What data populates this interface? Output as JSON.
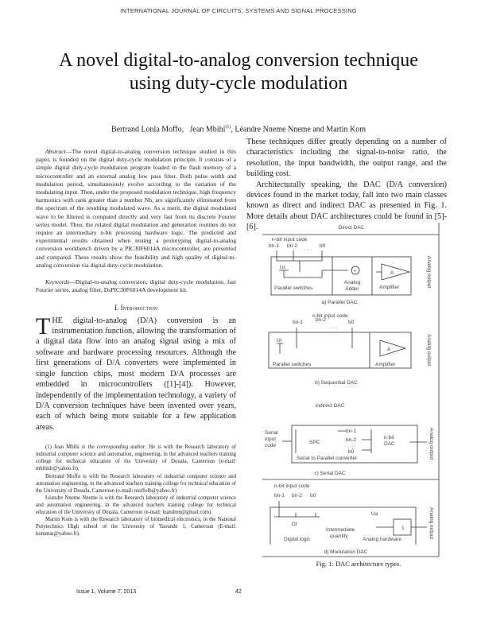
{
  "header": "INTERNATIONAL JOURNAL OF CIRCUITS, SYSTEMS AND SIGNAL PROCESSING",
  "title_line1": "A novel digital-to-analog conversion technique",
  "title_line2": "using duty-cycle modulation",
  "authors": {
    "a1": "Bertrand Lonla Moffo,",
    "a2": "Jean Mbihi",
    "a2_mark": "(1)",
    "a3": ",  Léandre Nneme Nneme and  Martin Kom"
  },
  "abstract": {
    "label": "Abstract",
    "text": "—The novel digital-to-analog conversion technique studied in this paper, is founded on the digital duty-cycle modulation principle.  It consists of a simple digital duty-cycle modulation program loaded in the flash memory of a microcontroller and an external analog low pass filter. Both pulse width and modulation period, simultaneously evolve according to the variation of the modulating input. Then, under the proposed modulation technique, high frequency harmonics with rank greater than a number  Nh, are significantly eliminated from the spectrum of the resulting modulated wave.  As a merit, the digital modulated wave to be filtered is computed directly and very fast from its discrete Fourier series model. Thus, the related digital modulation and generation routines do not require an intermediary n-bit processing hardware logic. The predicted and experimental results obtained when testing a prototyping digital-to-analog conversion workbench driven by a PIC30F6014A microcontroller, are presented and compared. These results show the feasibility and high quality of digital-to-analog conversion via digital duty-cycle modulation."
  },
  "keywords": {
    "label": "Keywords",
    "text": "—Digital-to-analog conversion, digital duty-cycle modulation, fast Fourier series, analog filter, DsPIC30F6014A development kit."
  },
  "section1": {
    "number": "I.",
    "title": "Introduction"
  },
  "intro": {
    "drop": "T",
    "first": "HE",
    "text": " digital-to-analog (D/A) conversion is an instrumentation function, allowing the transformation of a digital data flow into an analog signal using a mix of software and hardware processing resources. Although the first generations of D/A converters were implemented in single function chips, most modern D/A processes are embedded in microcontrollers ([1]-[4]). However, independently of the implementation technology, a variety of D/A conversion techniques have been invented over years, each of which being more suitable for a few application areas."
  },
  "footnotes": [
    {
      "pre": "(1) Jean Mbihi ",
      "em": "is the corresponding author",
      "post": ".  He is with the Research laboratory of industrial computer science and automation, engineering, in the advanced teachers training college for technical education of the University of Douala, Cameroun (e-mail: mbihidr@yahoo.fr)."
    },
    {
      "pre": "Bertrand Moffo is with the Research laboratory of industrial computer science and automation engineering, in the advanced teachers training college for technical education of the University of Douala, Cameroun (e-mail: moffolb@yahoo.fr)",
      "em": "",
      "post": ""
    },
    {
      "pre": "Léandre Nneme Nneme is with the Research laboratory of industrial computer science and automation engineering, in the advanced teachers training college for technical education of the University of Douala, Cameroun (e-mail: leandren@gmail.com).",
      "em": "",
      "post": ""
    },
    {
      "pre": "Martin Kom is with the Research laboratory of biomedical electronics, in the National Polytechnics High school of the University of Yaounde 1, Cameroun (E-mail: kommar@yahoo.fr).",
      "em": "",
      "post": ""
    }
  ],
  "right_paras": [
    "These techniques differ greatly depending on a number of characteristics including the signal-to-noise ratio, the resolution, the input bandwidth, the output range, and the building cost.",
    "Architecturally speaking, the DAC (D/A conversion) devices found in the market today, fall into two main classes known as direct and indirect DAC as presented in Fig. 1. More details about DAC architectures could be found in [5]-[6]."
  ],
  "figure": {
    "direct": "Direct DAC",
    "indirect": "Indirect DAC",
    "nbit": "n-bit input code",
    "bn1": "bn-1",
    "bn2": "bn-2",
    "dots": ". . .",
    "b0": "b0",
    "ur": "Ur",
    "parallel_switches": "Parallel switches",
    "analog": "Analog",
    "adder": "Adder",
    "amplifier": "Amplifier",
    "amp_a": "A",
    "analog_output": "Analog output",
    "cap_a": "a)  Parallel DAC",
    "cap_b": "b)  Sequential DAC",
    "serial1": "Serial",
    "serial2": "input",
    "serial3": "code",
    "spc": "SPC",
    "nbitdac1": "n-bit",
    "nbitdac2": "DAC",
    "spc_full": "Serial to Parallel converter",
    "cap_c": "c) Serial DAC",
    "di": "DI",
    "inter1": "Intermediate",
    "inter2": "quantity",
    "ua": "Ua",
    "analog_hw": "Analog  hardware",
    "one": "1",
    "cap_d": "d)  Modulation DAC",
    "caption": "Fig. 1:  DAC architecture types."
  },
  "footer": {
    "issue": "Issue 1, Volume 7, 2013",
    "page": "42"
  }
}
